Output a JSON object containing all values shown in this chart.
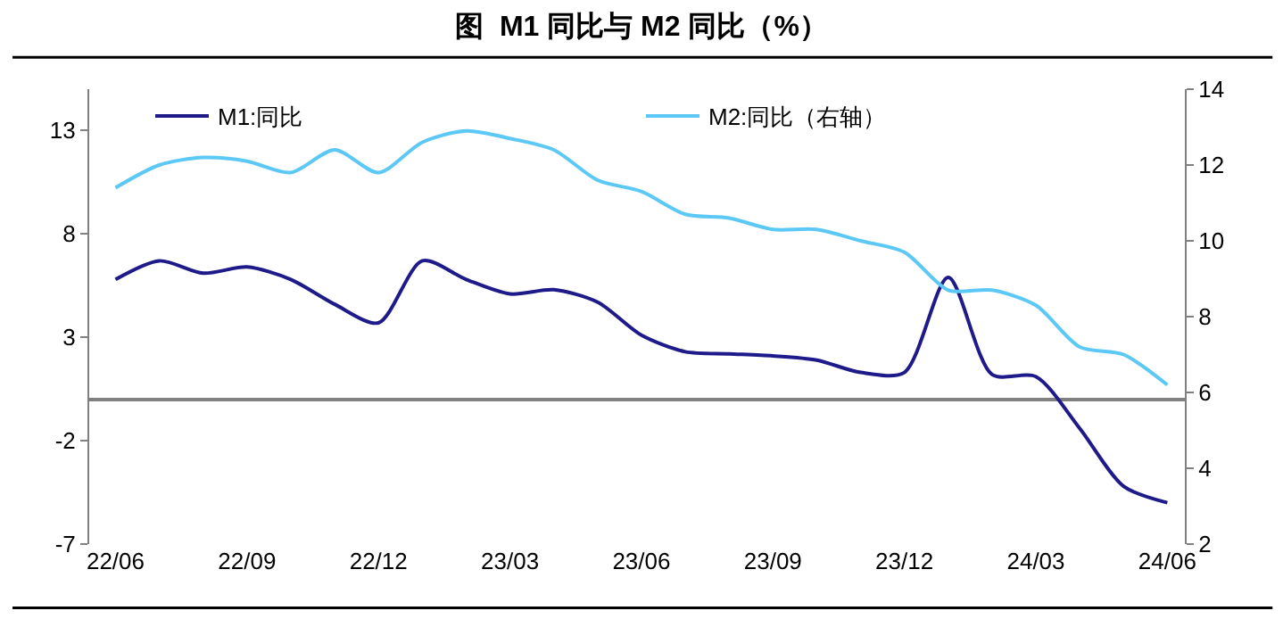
{
  "chart_data": {
    "type": "line",
    "title": "图  M1 同比与 M2 同比（%）",
    "categories": [
      "22/06",
      null,
      null,
      "22/09",
      null,
      null,
      "22/12",
      null,
      null,
      "23/03",
      null,
      null,
      "23/06",
      null,
      null,
      "23/09",
      null,
      null,
      "23/12",
      null,
      null,
      "24/03",
      null,
      null,
      "24/06"
    ],
    "series": [
      {
        "name": "M1:同比",
        "color": "#1f1a8a",
        "values": [
          5.8,
          6.7,
          6.1,
          6.4,
          5.8,
          4.6,
          3.7,
          6.7,
          5.8,
          5.1,
          5.3,
          4.7,
          3.1,
          2.3,
          2.2,
          2.1,
          1.9,
          1.3,
          1.3,
          5.9,
          1.2,
          1.1,
          -1.4,
          -4.2,
          -5.0
        ]
      },
      {
        "name": "M2:同比（右轴）",
        "color": "#5bc8f5",
        "axis": "y2",
        "values": [
          11.4,
          12.0,
          12.2,
          12.1,
          11.8,
          12.4,
          11.8,
          12.6,
          12.9,
          12.7,
          12.4,
          11.6,
          11.3,
          10.7,
          10.6,
          10.3,
          10.3,
          10.0,
          9.7,
          8.7,
          8.7,
          8.3,
          7.2,
          7.0,
          6.2
        ]
      }
    ],
    "ylim": [
      -7,
      15
    ],
    "yticks": [
      -7,
      -2,
      3,
      8,
      13
    ],
    "y2lim": [
      2,
      14
    ],
    "y2ticks": [
      2,
      4,
      6,
      8,
      10,
      12,
      14
    ],
    "legend": "top",
    "marker": "none",
    "line_style": "solid"
  }
}
